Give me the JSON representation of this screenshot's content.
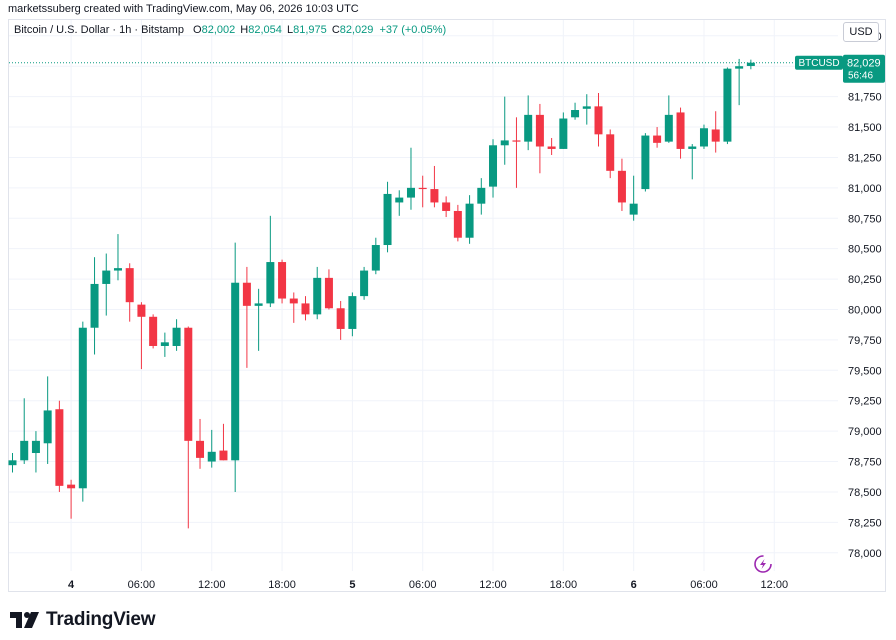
{
  "header": {
    "text": "marketssuberg created with TradingView.com, May 06, 2026 10:03 UTC"
  },
  "legend": {
    "symbol": "Bitcoin / U.S. Dollar · 1h · Bitstamp",
    "o_label": "O",
    "o_value": "82,002",
    "h_label": "H",
    "h_value": "82,054",
    "l_label": "L",
    "l_value": "81,975",
    "c_label": "C",
    "c_value": "82,029",
    "change": "+37 (+0.05%)"
  },
  "currency": "USD",
  "price_tag": {
    "symbol": "BTCUSD",
    "price": "82,029",
    "countdown": "56:46"
  },
  "footer": {
    "brand": "TradingView"
  },
  "colors": {
    "up": "#089981",
    "down": "#f23645",
    "grid": "#f0f3fa",
    "text": "#131722"
  },
  "chart_data": {
    "type": "candlestick",
    "y_ticks": [
      78000,
      78250,
      78500,
      78750,
      79000,
      79250,
      79500,
      79750,
      80000,
      80250,
      80500,
      80750,
      81000,
      81250,
      81500,
      81750,
      82000,
      82250
    ],
    "y_tick_labels": [
      "78,000",
      "78,250",
      "78,500",
      "78,750",
      "79,000",
      "79,250",
      "79,500",
      "79,750",
      "80,000",
      "80,250",
      "80,500",
      "80,750",
      "81,000",
      "81,250",
      "81,500",
      "81,750",
      "82,000",
      "82,250"
    ],
    "ylim": [
      77850,
      82380
    ],
    "x_ticks": [
      {
        "index": 5,
        "label": "4"
      },
      {
        "index": 11,
        "label": "06:00"
      },
      {
        "index": 17,
        "label": "12:00"
      },
      {
        "index": 23,
        "label": "18:00"
      },
      {
        "index": 29,
        "label": "5"
      },
      {
        "index": 35,
        "label": "06:00"
      },
      {
        "index": 41,
        "label": "12:00"
      },
      {
        "index": 47,
        "label": "18:00"
      },
      {
        "index": 53,
        "label": "6"
      },
      {
        "index": 59,
        "label": "06:00"
      },
      {
        "index": 65,
        "label": "12:00"
      }
    ],
    "last_price": 82029,
    "candles": [
      {
        "o": 78720,
        "h": 78820,
        "l": 78660,
        "c": 78760
      },
      {
        "o": 78760,
        "h": 79270,
        "l": 78730,
        "c": 78920
      },
      {
        "o": 78820,
        "h": 79000,
        "l": 78660,
        "c": 78920
      },
      {
        "o": 78900,
        "h": 79450,
        "l": 78730,
        "c": 79170
      },
      {
        "o": 79180,
        "h": 79250,
        "l": 78500,
        "c": 78550
      },
      {
        "o": 78560,
        "h": 78600,
        "l": 78280,
        "c": 78530
      },
      {
        "o": 78530,
        "h": 79900,
        "l": 78420,
        "c": 79850
      },
      {
        "o": 79850,
        "h": 80430,
        "l": 79630,
        "c": 80210
      },
      {
        "o": 80210,
        "h": 80460,
        "l": 79950,
        "c": 80320
      },
      {
        "o": 80320,
        "h": 80620,
        "l": 80240,
        "c": 80340
      },
      {
        "o": 80340,
        "h": 80380,
        "l": 79900,
        "c": 80060
      },
      {
        "o": 80040,
        "h": 80060,
        "l": 79510,
        "c": 79940
      },
      {
        "o": 79940,
        "h": 79960,
        "l": 79680,
        "c": 79700
      },
      {
        "o": 79700,
        "h": 79810,
        "l": 79610,
        "c": 79730
      },
      {
        "o": 79700,
        "h": 79920,
        "l": 79660,
        "c": 79850
      },
      {
        "o": 79850,
        "h": 79860,
        "l": 78200,
        "c": 78920
      },
      {
        "o": 78920,
        "h": 79100,
        "l": 78690,
        "c": 78780
      },
      {
        "o": 78750,
        "h": 79010,
        "l": 78700,
        "c": 78830
      },
      {
        "o": 78840,
        "h": 79060,
        "l": 78760,
        "c": 78760
      },
      {
        "o": 78760,
        "h": 80550,
        "l": 78500,
        "c": 80220
      },
      {
        "o": 80220,
        "h": 80350,
        "l": 79520,
        "c": 80030
      },
      {
        "o": 80030,
        "h": 80170,
        "l": 79660,
        "c": 80050
      },
      {
        "o": 80050,
        "h": 80770,
        "l": 80020,
        "c": 80390
      },
      {
        "o": 80390,
        "h": 80410,
        "l": 80050,
        "c": 80090
      },
      {
        "o": 80090,
        "h": 80140,
        "l": 79890,
        "c": 80050
      },
      {
        "o": 80050,
        "h": 80110,
        "l": 79910,
        "c": 79960
      },
      {
        "o": 79960,
        "h": 80350,
        "l": 79920,
        "c": 80260
      },
      {
        "o": 80260,
        "h": 80330,
        "l": 80000,
        "c": 80010
      },
      {
        "o": 80010,
        "h": 80070,
        "l": 79750,
        "c": 79840
      },
      {
        "o": 79840,
        "h": 80140,
        "l": 79780,
        "c": 80110
      },
      {
        "o": 80110,
        "h": 80350,
        "l": 80080,
        "c": 80320
      },
      {
        "o": 80320,
        "h": 80590,
        "l": 80290,
        "c": 80530
      },
      {
        "o": 80530,
        "h": 81050,
        "l": 80470,
        "c": 80950
      },
      {
        "o": 80880,
        "h": 80980,
        "l": 80770,
        "c": 80920
      },
      {
        "o": 80920,
        "h": 81330,
        "l": 80820,
        "c": 81000
      },
      {
        "o": 81000,
        "h": 81100,
        "l": 80840,
        "c": 80990
      },
      {
        "o": 80990,
        "h": 81180,
        "l": 80840,
        "c": 80880
      },
      {
        "o": 80880,
        "h": 80930,
        "l": 80760,
        "c": 80810
      },
      {
        "o": 80810,
        "h": 80860,
        "l": 80560,
        "c": 80590
      },
      {
        "o": 80590,
        "h": 80940,
        "l": 80540,
        "c": 80870
      },
      {
        "o": 80870,
        "h": 81080,
        "l": 80780,
        "c": 81000
      },
      {
        "o": 81010,
        "h": 81400,
        "l": 80920,
        "c": 81350
      },
      {
        "o": 81350,
        "h": 81750,
        "l": 81190,
        "c": 81390
      },
      {
        "o": 81390,
        "h": 81580,
        "l": 81000,
        "c": 81380
      },
      {
        "o": 81380,
        "h": 81760,
        "l": 81310,
        "c": 81600
      },
      {
        "o": 81600,
        "h": 81690,
        "l": 81120,
        "c": 81340
      },
      {
        "o": 81340,
        "h": 81410,
        "l": 81270,
        "c": 81320
      },
      {
        "o": 81320,
        "h": 81620,
        "l": 81320,
        "c": 81570
      },
      {
        "o": 81580,
        "h": 81700,
        "l": 81560,
        "c": 81640
      },
      {
        "o": 81650,
        "h": 81770,
        "l": 81520,
        "c": 81670
      },
      {
        "o": 81670,
        "h": 81780,
        "l": 81340,
        "c": 81440
      },
      {
        "o": 81440,
        "h": 81480,
        "l": 81080,
        "c": 81140
      },
      {
        "o": 81140,
        "h": 81240,
        "l": 80810,
        "c": 80880
      },
      {
        "o": 80780,
        "h": 81100,
        "l": 80730,
        "c": 80870
      },
      {
        "o": 80990,
        "h": 81450,
        "l": 80970,
        "c": 81430
      },
      {
        "o": 81430,
        "h": 81500,
        "l": 81330,
        "c": 81370
      },
      {
        "o": 81380,
        "h": 81760,
        "l": 81370,
        "c": 81600
      },
      {
        "o": 81620,
        "h": 81660,
        "l": 81240,
        "c": 81320
      },
      {
        "o": 81320,
        "h": 81360,
        "l": 81070,
        "c": 81340
      },
      {
        "o": 81340,
        "h": 81520,
        "l": 81320,
        "c": 81490
      },
      {
        "o": 81480,
        "h": 81630,
        "l": 81290,
        "c": 81380
      },
      {
        "o": 81380,
        "h": 81990,
        "l": 81360,
        "c": 81980
      },
      {
        "o": 81980,
        "h": 82060,
        "l": 81680,
        "c": 82000
      },
      {
        "o": 82002,
        "h": 82054,
        "l": 81975,
        "c": 82029
      }
    ]
  }
}
